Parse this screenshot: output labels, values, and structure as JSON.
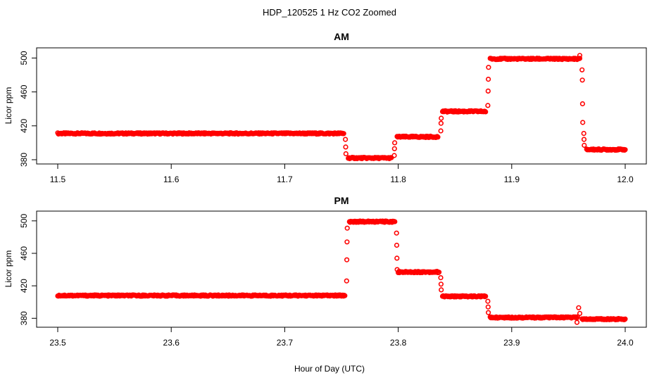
{
  "title": "HDP_120525  1 Hz CO2 Zoomed",
  "xlabel": "Hour of Day (UTC)",
  "marker_color": "#ff0000",
  "chart_data": [
    {
      "type": "scatter",
      "title": "AM",
      "ylabel": "Licor ppm",
      "xlim": [
        11.5,
        12.0
      ],
      "ylim": [
        375,
        512
      ],
      "xticks": [
        "11.5",
        "11.6",
        "11.7",
        "11.8",
        "11.9",
        "12.0"
      ],
      "yticks": [
        "380",
        "420",
        "460",
        "500"
      ],
      "segments": [
        {
          "x_start": 11.5,
          "x_end": 11.752,
          "y": 411
        },
        {
          "x_start": 11.756,
          "x_end": 11.794,
          "y": 382
        },
        {
          "x_start": 11.799,
          "x_end": 11.835,
          "y": 407
        },
        {
          "x_start": 11.839,
          "x_end": 11.877,
          "y": 437
        },
        {
          "x_start": 11.881,
          "x_end": 11.96,
          "y": 499
        },
        {
          "x_start": 11.966,
          "x_end": 12.0,
          "y": 392
        }
      ],
      "transitions": [
        {
          "x": 11.7535,
          "y": [
            404,
            395,
            387
          ]
        },
        {
          "x": 11.7965,
          "y": [
            385,
            393,
            400
          ]
        },
        {
          "x": 11.8375,
          "y": [
            414,
            423,
            429
          ]
        },
        {
          "x": 11.879,
          "y": [
            444,
            461,
            475,
            489
          ]
        },
        {
          "x": 11.962,
          "y": [
            486,
            474,
            446,
            424
          ]
        },
        {
          "x": 11.9635,
          "y": [
            411,
            404,
            397
          ]
        }
      ],
      "spikes": [
        {
          "x": 11.96,
          "y": 503
        }
      ]
    },
    {
      "type": "scatter",
      "title": "PM",
      "ylabel": "Licor ppm",
      "xlim": [
        23.5,
        24.0
      ],
      "ylim": [
        369,
        512
      ],
      "xticks": [
        "23.5",
        "23.6",
        "23.7",
        "23.8",
        "23.9",
        "24.0"
      ],
      "yticks": [
        "380",
        "420",
        "460",
        "500"
      ],
      "segments": [
        {
          "x_start": 23.5,
          "x_end": 23.753,
          "y": 408
        },
        {
          "x_start": 23.757,
          "x_end": 23.797,
          "y": 499
        },
        {
          "x_start": 23.8,
          "x_end": 23.836,
          "y": 437
        },
        {
          "x_start": 23.839,
          "x_end": 23.877,
          "y": 407
        },
        {
          "x_start": 23.881,
          "x_end": 23.958,
          "y": 381
        },
        {
          "x_start": 23.962,
          "x_end": 24.0,
          "y": 379
        }
      ],
      "transitions": [
        {
          "x": 23.7545,
          "y": [
            426,
            452,
            474,
            491
          ]
        },
        {
          "x": 23.7985,
          "y": [
            485,
            470,
            454,
            440
          ]
        },
        {
          "x": 23.8375,
          "y": [
            430,
            422,
            415
          ]
        },
        {
          "x": 23.879,
          "y": [
            401,
            394,
            387
          ]
        }
      ],
      "spikes": [
        {
          "x": 23.959,
          "y": 393
        },
        {
          "x": 23.9575,
          "y": 375
        },
        {
          "x": 23.96,
          "y": 386
        }
      ]
    }
  ]
}
